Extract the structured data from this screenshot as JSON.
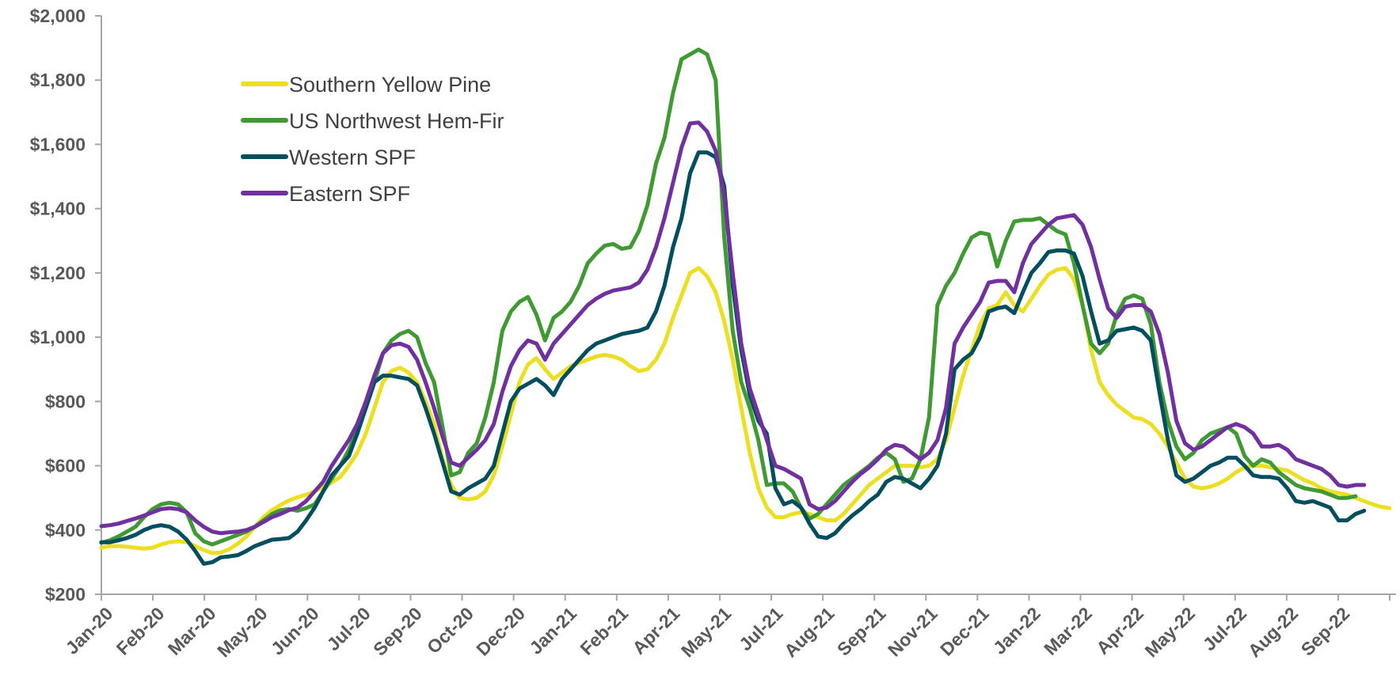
{
  "chart_data": {
    "type": "line",
    "title": "",
    "xlabel": "",
    "ylabel": "",
    "ylim": [
      200,
      2000
    ],
    "y_ticks": [
      "$200",
      "$400",
      "$600",
      "$800",
      "$1,000",
      "$1,200",
      "$1,400",
      "$1,600",
      "$1,800",
      "$2,000"
    ],
    "y_tick_values": [
      200,
      400,
      600,
      800,
      1000,
      1200,
      1400,
      1600,
      1800,
      2000
    ],
    "x_tick_labels": [
      "Jan-20",
      "Feb-20",
      "Mar-20",
      "May-20",
      "Jun-20",
      "Jul-20",
      "Sep-20",
      "Oct-20",
      "Dec-20",
      "Jan-21",
      "Feb-21",
      "Apr-21",
      "May-21",
      "Jul-21",
      "Aug-21",
      "Sep-21",
      "Nov-21",
      "Dec-21",
      "Jan-22",
      "Mar-22",
      "Apr-22",
      "May-22",
      "Jul-22",
      "Aug-22",
      "Sep-22"
    ],
    "x_unit": "weekly observations, Jan-20 to Sep-22",
    "grid": false,
    "legend_position": "top-left",
    "series": [
      {
        "name": "Southern Yellow Pine",
        "color": "#ecdf22",
        "values": [
          345,
          350,
          350,
          348,
          345,
          342,
          345,
          355,
          362,
          365,
          362,
          350,
          338,
          328,
          330,
          340,
          358,
          380,
          410,
          440,
          462,
          478,
          492,
          502,
          510,
          520,
          535,
          548,
          565,
          600,
          640,
          700,
          780,
          860,
          895,
          905,
          890,
          860,
          800,
          730,
          620,
          540,
          500,
          495,
          500,
          520,
          570,
          660,
          760,
          860,
          915,
          935,
          900,
          870,
          890,
          910,
          920,
          930,
          940,
          945,
          940,
          930,
          910,
          895,
          900,
          930,
          980,
          1060,
          1130,
          1200,
          1215,
          1190,
          1140,
          1050,
          930,
          780,
          640,
          530,
          470,
          440,
          440,
          450,
          455,
          450,
          440,
          430,
          430,
          450,
          480,
          510,
          540,
          560,
          580,
          600,
          600,
          600,
          595,
          600,
          620,
          680,
          780,
          880,
          960,
          1040,
          1090,
          1100,
          1140,
          1100,
          1080,
          1120,
          1160,
          1195,
          1210,
          1215,
          1180,
          1100,
          960,
          860,
          820,
          790,
          770,
          750,
          745,
          730,
          700,
          660,
          610,
          560,
          535,
          530,
          535,
          545,
          560,
          580,
          595,
          600,
          600,
          595,
          590,
          585,
          570,
          555,
          545,
          530,
          520,
          515,
          510,
          500,
          490,
          480,
          472,
          468
        ]
      },
      {
        "name": "US Northwest Hem-Fir",
        "color": "#3f9a32",
        "values": [
          360,
          368,
          380,
          395,
          410,
          440,
          465,
          480,
          485,
          480,
          455,
          390,
          365,
          355,
          365,
          375,
          385,
          395,
          410,
          430,
          450,
          462,
          465,
          460,
          468,
          480,
          520,
          560,
          600,
          650,
          710,
          780,
          860,
          950,
          990,
          1010,
          1020,
          1000,
          920,
          860,
          720,
          570,
          580,
          640,
          670,
          750,
          860,
          1020,
          1080,
          1110,
          1125,
          1070,
          990,
          1060,
          1080,
          1110,
          1160,
          1230,
          1260,
          1285,
          1290,
          1275,
          1280,
          1330,
          1410,
          1540,
          1620,
          1760,
          1865,
          1880,
          1895,
          1880,
          1800,
          1310,
          1020,
          860,
          780,
          680,
          540,
          545,
          545,
          520,
          470,
          435,
          450,
          480,
          510,
          540,
          560,
          580,
          600,
          625,
          640,
          620,
          550,
          560,
          620,
          750,
          1100,
          1160,
          1200,
          1260,
          1310,
          1325,
          1320,
          1220,
          1300,
          1360,
          1365,
          1365,
          1370,
          1350,
          1330,
          1320,
          1230,
          1100,
          980,
          950,
          980,
          1070,
          1120,
          1130,
          1120,
          1040,
          860,
          740,
          660,
          620,
          640,
          680,
          700,
          710,
          720,
          700,
          630,
          600,
          620,
          610,
          580,
          560,
          540,
          530,
          525,
          520,
          510,
          500,
          500,
          505
        ]
      },
      {
        "name": "Western SPF",
        "color": "#004e5e",
        "values": [
          362,
          362,
          368,
          375,
          385,
          400,
          410,
          415,
          410,
          395,
          370,
          335,
          295,
          300,
          315,
          318,
          322,
          335,
          350,
          360,
          370,
          372,
          375,
          395,
          430,
          470,
          520,
          570,
          600,
          630,
          700,
          780,
          860,
          880,
          880,
          875,
          870,
          850,
          780,
          700,
          610,
          520,
          510,
          530,
          545,
          560,
          600,
          700,
          800,
          840,
          855,
          870,
          850,
          820,
          870,
          900,
          930,
          960,
          980,
          990,
          1000,
          1010,
          1015,
          1020,
          1030,
          1080,
          1160,
          1280,
          1370,
          1510,
          1575,
          1575,
          1560,
          1470,
          1160,
          960,
          820,
          740,
          700,
          530,
          480,
          490,
          470,
          420,
          380,
          375,
          390,
          420,
          445,
          465,
          490,
          510,
          550,
          565,
          560,
          545,
          530,
          560,
          600,
          700,
          900,
          930,
          950,
          1000,
          1080,
          1090,
          1095,
          1075,
          1140,
          1200,
          1230,
          1265,
          1270,
          1270,
          1260,
          1190,
          1080,
          980,
          990,
          1020,
          1025,
          1030,
          1020,
          990,
          830,
          680,
          570,
          550,
          560,
          580,
          600,
          610,
          625,
          625,
          600,
          570,
          565,
          565,
          560,
          530,
          490,
          485,
          490,
          480,
          470,
          430,
          430,
          450,
          460
        ]
      },
      {
        "name": "Eastern SPF",
        "color": "#7030a0",
        "values": [
          412,
          415,
          420,
          428,
          436,
          445,
          455,
          465,
          468,
          465,
          455,
          430,
          410,
          395,
          390,
          393,
          395,
          400,
          410,
          425,
          440,
          450,
          462,
          470,
          490,
          520,
          550,
          600,
          640,
          680,
          730,
          800,
          880,
          950,
          975,
          980,
          970,
          930,
          860,
          780,
          690,
          610,
          600,
          625,
          650,
          680,
          730,
          830,
          910,
          960,
          990,
          980,
          930,
          980,
          1010,
          1040,
          1070,
          1100,
          1120,
          1135,
          1145,
          1150,
          1155,
          1170,
          1210,
          1280,
          1370,
          1480,
          1590,
          1665,
          1668,
          1640,
          1580,
          1440,
          1200,
          980,
          840,
          760,
          680,
          600,
          590,
          575,
          560,
          480,
          465,
          470,
          490,
          520,
          550,
          575,
          595,
          620,
          650,
          665,
          660,
          640,
          620,
          640,
          680,
          780,
          980,
          1030,
          1070,
          1110,
          1170,
          1175,
          1175,
          1140,
          1230,
          1290,
          1320,
          1350,
          1370,
          1375,
          1380,
          1350,
          1280,
          1180,
          1090,
          1060,
          1095,
          1100,
          1100,
          1080,
          1010,
          890,
          740,
          670,
          650,
          660,
          680,
          700,
          720,
          730,
          720,
          700,
          660,
          660,
          665,
          650,
          620,
          610,
          600,
          590,
          570,
          540,
          535,
          540,
          540
        ]
      }
    ]
  }
}
